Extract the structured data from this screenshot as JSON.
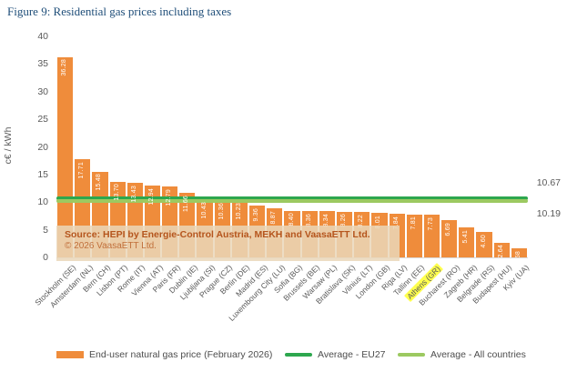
{
  "chart_data": {
    "type": "bar",
    "title": "Figure 9: Residential gas prices including taxes",
    "xlabel": "",
    "ylabel": "c€ / kWh",
    "ylim": [
      0,
      40
    ],
    "ytick_step": 5,
    "grid": false,
    "legend_position": "bottom",
    "series_name": "End-user natural gas price (February 2026)",
    "categories": [
      "Stockholm (SE)",
      "Amsterdam (NL)",
      "Bern (CH)",
      "Lisbon (PT)",
      "Rome (IT)",
      "Vienna (AT)",
      "Paris (FR)",
      "Dublin (IE)",
      "Ljubljana (SI)",
      "Prague (CZ)",
      "Berlin (DE)",
      "Madrid (ES)",
      "Luxembourg City (LU)",
      "Sofia (BG)",
      "Brussels (BE)",
      "Warsaw (PL)",
      "Bratislava (SK)",
      "Vilnius (LT)",
      "London (GB)",
      "Riga (LV)",
      "Tallinn (EE)",
      "Athens (GR)",
      "Bucharest (RO)",
      "Zagreb (HR)",
      "Belgrade (RS)",
      "Budapest (HU)",
      "Kyiv (UA)"
    ],
    "values": [
      36.28,
      17.71,
      15.48,
      13.7,
      13.43,
      12.94,
      12.79,
      11.66,
      10.43,
      10.36,
      10.23,
      9.36,
      8.87,
      8.4,
      8.36,
      8.34,
      8.26,
      8.22,
      8.01,
      7.84,
      7.81,
      7.73,
      6.69,
      5.41,
      4.6,
      2.64,
      1.58
    ],
    "highlighted_category": "Athens (GR)",
    "bar_color": "#EF8C3B",
    "highlight_color": "#FFFF4D",
    "reference_lines": [
      {
        "name": "Average - EU27",
        "value": 10.67,
        "label": "10.67",
        "color": "#2DA74E"
      },
      {
        "name": "Average - All countries",
        "value": 10.19,
        "label": "10.19",
        "color": "#9CC961"
      }
    ],
    "legend": [
      {
        "label": "End-user natural gas price (February 2026)",
        "swatch": "bar",
        "color": "#EF8C3B"
      },
      {
        "label": "Average - EU27",
        "swatch": "line",
        "color": "#2DA74E"
      },
      {
        "label": "Average - All countries",
        "swatch": "line",
        "color": "#9CC961"
      }
    ]
  },
  "source_box": {
    "line1": "Source: HEPI by Energie-Control Austria, MEKH and VaasaETT Ltd.",
    "line2": "© 2026 VaasaETT Ltd."
  }
}
